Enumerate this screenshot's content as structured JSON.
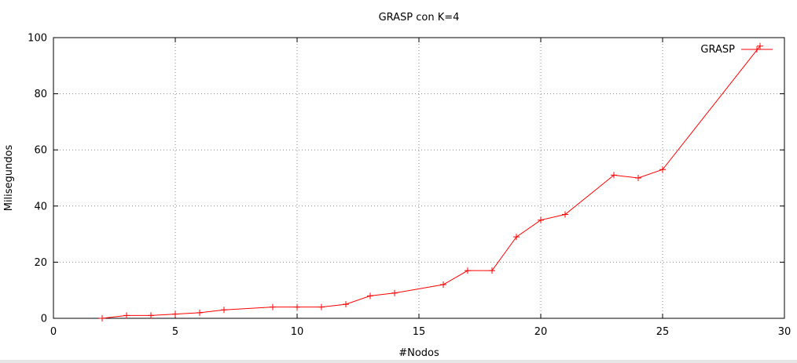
{
  "chart_data": {
    "type": "line",
    "title": "GRASP con K=4",
    "xlabel": "#Nodos",
    "ylabel": "Milisegundos",
    "xlim": [
      0,
      30
    ],
    "ylim": [
      0,
      100
    ],
    "xticks": [
      0,
      5,
      10,
      15,
      20,
      25,
      30
    ],
    "yticks": [
      0,
      20,
      40,
      60,
      80,
      100
    ],
    "grid": true,
    "legend_position": "top-right",
    "series": [
      {
        "name": "GRASP",
        "color": "#ff0000",
        "marker": "plus",
        "x": [
          2,
          3,
          4,
          5,
          6,
          7,
          9,
          10,
          11,
          12,
          13,
          14,
          16,
          17,
          18,
          19,
          20,
          21,
          23,
          24,
          25,
          29
        ],
        "y": [
          0,
          1,
          1,
          1.5,
          2,
          3,
          4,
          4,
          4,
          5,
          8,
          9,
          12,
          17,
          17,
          29,
          35,
          37,
          51,
          50,
          53,
          97
        ]
      }
    ]
  }
}
